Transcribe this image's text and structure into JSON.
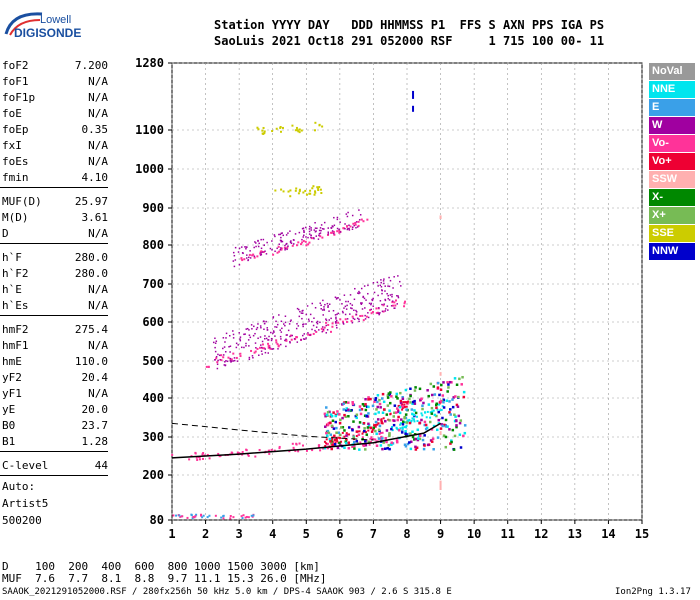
{
  "logo": {
    "line1": "Lowell",
    "line2": "DIGISONDE"
  },
  "header": {
    "row1": "Station YYYY DAY   DDD HHMMSS P1  FFS S AXN PPS IGA PS",
    "row2": "SaoLuis 2021 Oct18 291 052000 RSF     1 715 100 00- 11"
  },
  "scaled_params": [
    {
      "k": "foF2",
      "v": "7.200"
    },
    {
      "k": "foF1",
      "v": "N/A"
    },
    {
      "k": "foF1p",
      "v": "N/A"
    },
    {
      "k": "foE",
      "v": "N/A"
    },
    {
      "k": "foEp",
      "v": "0.35"
    },
    {
      "k": "fxI",
      "v": "N/A"
    },
    {
      "k": "foEs",
      "v": "N/A"
    },
    {
      "k": "fmin",
      "v": "4.10"
    },
    {
      "k": "MUF(D)",
      "v": "25.97"
    },
    {
      "k": "M(D)",
      "v": "3.61"
    },
    {
      "k": "D",
      "v": "N/A"
    },
    {
      "k": "h`F",
      "v": "280.0"
    },
    {
      "k": "h`F2",
      "v": "280.0"
    },
    {
      "k": "h`E",
      "v": "N/A"
    },
    {
      "k": "h`Es",
      "v": "N/A"
    },
    {
      "k": "hmF2",
      "v": "275.4"
    },
    {
      "k": "hmF1",
      "v": "N/A"
    },
    {
      "k": "hmE",
      "v": "110.0"
    },
    {
      "k": "yF2",
      "v": "20.4"
    },
    {
      "k": "yF1",
      "v": "N/A"
    },
    {
      "k": "yE",
      "v": "20.0"
    },
    {
      "k": "B0",
      "v": "23.7"
    },
    {
      "k": "B1",
      "v": "1.28"
    },
    {
      "k": "C-level",
      "v": "44"
    }
  ],
  "autoscale": {
    "line1": "Auto:",
    "line2": "Artist5",
    "line3": "500200"
  },
  "legend": [
    {
      "label": "NoVal",
      "color": "#999999"
    },
    {
      "label": "NNE",
      "color": "#00e5ee"
    },
    {
      "label": "E",
      "color": "#3aa0e8"
    },
    {
      "label": "W",
      "color": "#a000a0"
    },
    {
      "label": "Vo-",
      "color": "#ff3399"
    },
    {
      "label": "Vo+",
      "color": "#ee0033"
    },
    {
      "label": "SSW",
      "color": "#ffb0b0"
    },
    {
      "label": "X-",
      "color": "#008800"
    },
    {
      "label": "X+",
      "color": "#77bb55"
    },
    {
      "label": "SSE",
      "color": "#cccc00"
    },
    {
      "label": "NNW",
      "color": "#0000cc"
    }
  ],
  "muf_table": {
    "row1": "D    100  200  400  600  800 1000 1500 3000 [km]",
    "row2": "MUF  7.6  7.7  8.1  8.8  9.7 11.1 15.3 26.0 [MHz]"
  },
  "footer": {
    "left": "SAAOK_2021291052000.RSF / 280fx256h 50 kHz 5.0 km / DPS-4 SAAOK 903 / 2.6 S 315.8 E",
    "right": "Ion2Png 1.3.17"
  },
  "chart_data": {
    "type": "scatter",
    "title": "",
    "xlabel": "",
    "ylabel": "",
    "xlim": [
      1,
      15
    ],
    "x_ticks": [
      1,
      2,
      3,
      4,
      5,
      6,
      7,
      8,
      9,
      10,
      11,
      12,
      13,
      14,
      15
    ],
    "y_ticks": [
      80,
      200,
      300,
      400,
      500,
      600,
      700,
      800,
      900,
      1000,
      1100,
      1280
    ],
    "y_tick_positions_km": [
      80,
      200,
      300,
      400,
      500,
      600,
      700,
      800,
      900,
      1000,
      1100,
      1280
    ],
    "y_scale": "nonlinear (virtual height, km)",
    "grid": true,
    "series": [
      {
        "name": "Vo-",
        "traces": [
          {
            "x": [
              1.0,
              2.0,
              3.0,
              4.0,
              5.0,
              6.0,
              7.0,
              7.2
            ],
            "y": [
              245,
              252,
              260,
              268,
              276,
              284,
              295,
              305
            ]
          },
          {
            "x": [
              2.0,
              3.0,
              4.0,
              5.0,
              6.0,
              7.0,
              8.0
            ],
            "y": [
              495,
              520,
              545,
              570,
              600,
              630,
              660
            ]
          },
          {
            "x": [
              3.0,
              4.0,
              5.0,
              6.0,
              6.8
            ],
            "y": [
              765,
              790,
              810,
              840,
              880
            ]
          }
        ]
      },
      {
        "name": "Vo+",
        "traces": [
          {
            "x": [
              5.5,
              6.0,
              6.5,
              7.0,
              7.5,
              8.0
            ],
            "y": [
              290,
              300,
              310,
              330,
              360,
              390
            ]
          }
        ]
      },
      {
        "name": "NNE",
        "traces": [
          {
            "x": [
              7.5,
              8.0,
              8.5,
              9.0
            ],
            "y": [
              320,
              340,
              360,
              380
            ]
          }
        ]
      },
      {
        "name": "SSE",
        "traces": [
          {
            "x": [
              3.5,
              4.5,
              5.5
            ],
            "y": [
              1100,
              1105,
              1115
            ]
          },
          {
            "x": [
              4.0,
              5.0,
              5.5
            ],
            "y": [
              940,
              945,
              950
            ]
          }
        ]
      }
    ]
  }
}
